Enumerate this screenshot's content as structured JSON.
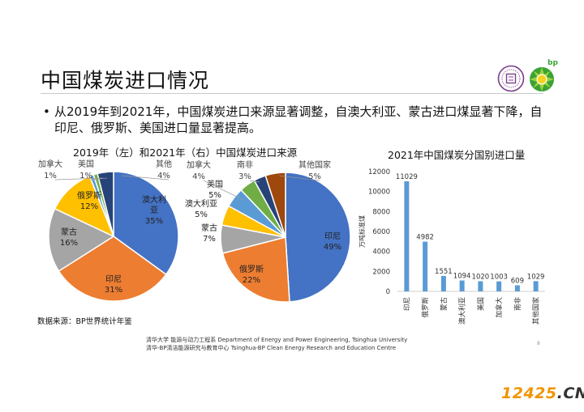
{
  "page": {
    "title": "中国煤炭进口情况",
    "bullet": "从2019年到2021年，中国煤炭进口来源显著调整，自澳大利亚、蒙古进口煤显著下降，自印尼、俄罗斯、美国进口量显著提高。",
    "source": "数据来源：BP世界统计年鉴",
    "footer1": "清华大学 能源与动力工程系 Department of Energy and Power Engineering, Tsinghua University",
    "footer2": "清华-BP清洁能源研究与教育中心 Tsinghua-BP  Clean Energy Research and Education Centre",
    "page_number": "8",
    "bp_logo_text": "bp",
    "watermark_main": "12425",
    "watermark_suffix": ".CN"
  },
  "colors": {
    "blue": "#4472c4",
    "orange": "#ed7d31",
    "gray": "#a5a5a5",
    "yellow": "#ffc000",
    "lightblue": "#5b9bd5",
    "green": "#70ad47",
    "darkblue": "#264478",
    "brown": "#9e480e",
    "bar": "#5b9bd5",
    "seal": "#7b3f8c",
    "bp_green": "#3aa335",
    "bp_yellow": "#f4d21f"
  },
  "chart_data": [
    {
      "type": "pie",
      "title": "2019年（左）和2021年（右）中国煤炭进口来源",
      "year": "2019",
      "slices": [
        {
          "label": "澳大利亚",
          "value": 35,
          "pct": "35%",
          "color": "#4472c4"
        },
        {
          "label": "印尼",
          "value": 31,
          "pct": "31%",
          "color": "#ed7d31"
        },
        {
          "label": "蒙古",
          "value": 16,
          "pct": "16%",
          "color": "#a5a5a5"
        },
        {
          "label": "俄罗斯",
          "value": 12,
          "pct": "12%",
          "color": "#ffc000"
        },
        {
          "label": "加拿大",
          "value": 1,
          "pct": "1%",
          "color": "#5b9bd5"
        },
        {
          "label": "美国",
          "value": 1,
          "pct": "1%",
          "color": "#70ad47"
        },
        {
          "label": "其他",
          "value": 4,
          "pct": "4%",
          "color": "#264478"
        }
      ]
    },
    {
      "type": "pie",
      "year": "2021",
      "slices": [
        {
          "label": "印尼",
          "value": 49,
          "pct": "49%",
          "color": "#4472c4"
        },
        {
          "label": "俄罗斯",
          "value": 22,
          "pct": "22%",
          "color": "#ed7d31"
        },
        {
          "label": "蒙古",
          "value": 7,
          "pct": "7%",
          "color": "#a5a5a5"
        },
        {
          "label": "澳大利亚",
          "value": 5,
          "pct": "5%",
          "color": "#ffc000"
        },
        {
          "label": "美国",
          "value": 5,
          "pct": "5%",
          "color": "#5b9bd5"
        },
        {
          "label": "加拿大",
          "value": 4,
          "pct": "4%",
          "color": "#70ad47"
        },
        {
          "label": "南非",
          "value": 3,
          "pct": "3%",
          "color": "#264478"
        },
        {
          "label": "其他国家",
          "value": 5,
          "pct": "5%",
          "color": "#9e480e"
        }
      ]
    },
    {
      "type": "bar",
      "title": "2021年中国煤炭分国别进口量",
      "ylabel": "万吨标准煤",
      "categories": [
        "印尼",
        "俄罗斯",
        "蒙古",
        "澳大利亚",
        "美国",
        "加拿大",
        "南非",
        "其他国家"
      ],
      "values": [
        11029,
        4982,
        1551,
        1094,
        1020,
        1003,
        609,
        1029
      ],
      "yticks": [
        0,
        2000,
        4000,
        6000,
        8000,
        10000,
        12000
      ],
      "ylim": [
        0,
        12000
      ]
    }
  ]
}
